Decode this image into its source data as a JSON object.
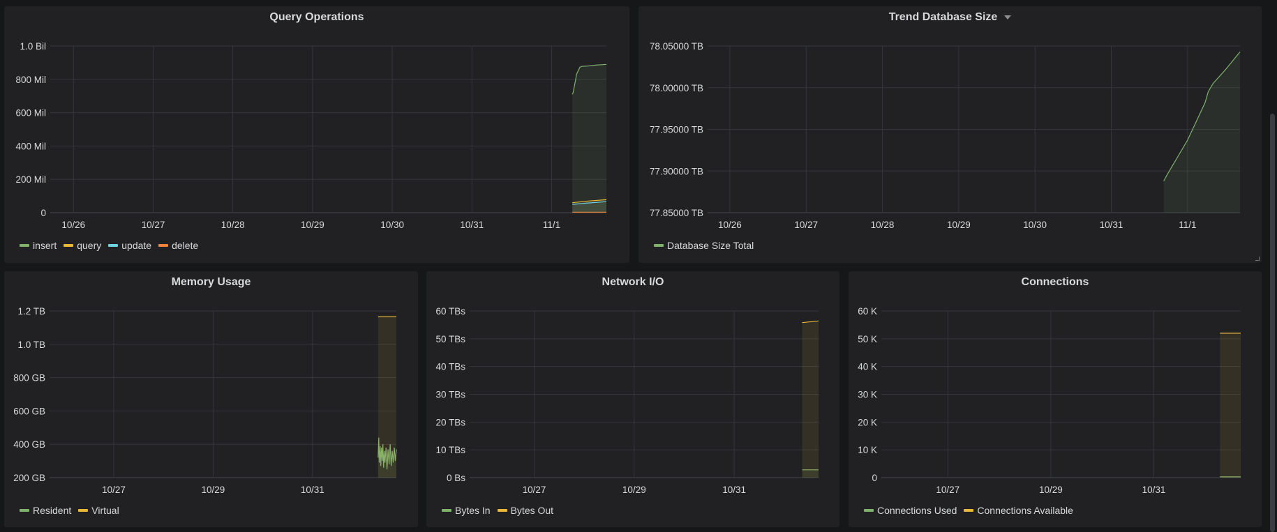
{
  "colors": {
    "background": "#161719",
    "panel": "#212124",
    "grid": "#35363a",
    "text": "#d8d9da",
    "green": "#7eb26d",
    "yellow": "#eab839",
    "cyan": "#6ed0e0",
    "orange": "#ef843c"
  },
  "panels": [
    {
      "title": "Query Operations",
      "has_menu_caret": false,
      "chart_data": {
        "type": "line",
        "xlim": [
          "10/25 17:00",
          "11/01 16:30"
        ],
        "x_ticks": [
          "10/26",
          "10/27",
          "10/28",
          "10/29",
          "10/30",
          "10/31",
          "11/1"
        ],
        "ylim": [
          0,
          1000000000
        ],
        "y_ticks": [
          {
            "value": 0,
            "label": "0"
          },
          {
            "value": 200000000,
            "label": "200 Mil"
          },
          {
            "value": 400000000,
            "label": "400 Mil"
          },
          {
            "value": 600000000,
            "label": "600 Mil"
          },
          {
            "value": 800000000,
            "label": "800 Mil"
          },
          {
            "value": 1000000000,
            "label": "1.0 Bil"
          }
        ],
        "grid": true,
        "legend": "bottom-left",
        "series": [
          {
            "name": "insert",
            "color": "#7eb26d",
            "points": [
              [
                "11/01 06:15",
                710000000
              ],
              [
                "11/01 06:30",
                722000000
              ],
              [
                "11/01 07:15",
                800000000
              ],
              [
                "11/01 07:30",
                830000000
              ],
              [
                "11/01 08:30",
                872000000
              ],
              [
                "11/01 09:00",
                878000000
              ],
              [
                "11/01 11:00",
                880000000
              ],
              [
                "11/01 13:00",
                885000000
              ],
              [
                "11/01 16:30",
                890000000
              ]
            ]
          },
          {
            "name": "query",
            "color": "#eab839",
            "points": [
              [
                "11/01 06:15",
                60000000
              ],
              [
                "11/01 11:00",
                70000000
              ],
              [
                "11/01 16:30",
                78000000
              ]
            ]
          },
          {
            "name": "update",
            "color": "#6ed0e0",
            "points": [
              [
                "11/01 06:15",
                50000000
              ],
              [
                "11/01 11:00",
                58000000
              ],
              [
                "11/01 16:30",
                66000000
              ]
            ]
          },
          {
            "name": "delete",
            "color": "#ef843c",
            "points": [
              [
                "11/01 06:15",
                3000000
              ],
              [
                "11/01 16:30",
                3000000
              ]
            ]
          }
        ]
      }
    },
    {
      "title": "Trend Database Size",
      "has_menu_caret": true,
      "chart_data": {
        "type": "line",
        "xlim": [
          "10/25 17:00",
          "11/01 16:30"
        ],
        "x_ticks": [
          "10/26",
          "10/27",
          "10/28",
          "10/29",
          "10/30",
          "10/31",
          "11/1"
        ],
        "ylim": [
          77.85,
          78.05
        ],
        "y_ticks": [
          {
            "value": 77.85,
            "label": "77.85000 TB"
          },
          {
            "value": 77.9,
            "label": "77.90000 TB"
          },
          {
            "value": 77.95,
            "label": "77.95000 TB"
          },
          {
            "value": 78.0,
            "label": "78.00000 TB"
          },
          {
            "value": 78.05,
            "label": "78.05000 TB"
          }
        ],
        "grid": true,
        "legend": "bottom-left",
        "series": [
          {
            "name": "Database Size Total",
            "color": "#7eb26d",
            "points": [
              [
                "10/31 16:30",
                77.888
              ],
              [
                "10/31 17:30",
                77.895
              ],
              [
                "11/01 00:00",
                77.937
              ],
              [
                "11/01 05:30",
                77.982
              ],
              [
                "11/01 06:30",
                77.995
              ],
              [
                "11/01 08:00",
                78.005
              ],
              [
                "11/01 12:00",
                78.022
              ],
              [
                "11/01 16:30",
                78.043
              ]
            ]
          }
        ]
      }
    },
    {
      "title": "Memory Usage",
      "has_menu_caret": false,
      "chart_data": {
        "type": "line",
        "xlim": [
          "10/25 17:00",
          "11/01 16:30"
        ],
        "x_ticks": [
          "10/27",
          "10/29",
          "10/31"
        ],
        "ylim": [
          200,
          1200
        ],
        "y_ticks": [
          {
            "value": 200,
            "label": "200 GB"
          },
          {
            "value": 400,
            "label": "400 GB"
          },
          {
            "value": 600,
            "label": "600 GB"
          },
          {
            "value": 800,
            "label": "800 GB"
          },
          {
            "value": 1000,
            "label": "1.0 TB"
          },
          {
            "value": 1200,
            "label": "1.2 TB"
          }
        ],
        "grid": true,
        "legend": "bottom-left",
        "series": [
          {
            "name": "Resident",
            "color": "#7eb26d",
            "points": [
              [
                "11/01 07:40",
                320
              ],
              [
                "11/01 08:00",
                440
              ],
              [
                "11/01 08:15",
                290
              ],
              [
                "11/01 08:40",
                390
              ],
              [
                "11/01 09:00",
                270
              ],
              [
                "11/01 09:20",
                380
              ],
              [
                "11/01 09:40",
                300
              ],
              [
                "11/01 10:00",
                400
              ],
              [
                "11/01 10:20",
                260
              ],
              [
                "11/01 10:40",
                360
              ],
              [
                "11/01 11:00",
                290
              ],
              [
                "11/01 11:30",
                380
              ],
              [
                "11/01 12:00",
                250
              ],
              [
                "11/01 12:30",
                370
              ],
              [
                "11/01 13:00",
                280
              ],
              [
                "11/01 13:30",
                400
              ],
              [
                "11/01 14:00",
                270
              ],
              [
                "11/01 14:30",
                360
              ],
              [
                "11/01 15:00",
                290
              ],
              [
                "11/01 15:30",
                380
              ],
              [
                "11/01 16:00",
                300
              ],
              [
                "11/01 16:30",
                370
              ]
            ]
          },
          {
            "name": "Virtual",
            "color": "#eab839",
            "points": [
              [
                "11/01 07:40",
                1165
              ],
              [
                "11/01 16:30",
                1165
              ]
            ]
          }
        ]
      }
    },
    {
      "title": "Network I/O",
      "has_menu_caret": false,
      "chart_data": {
        "type": "line",
        "xlim": [
          "10/25 17:00",
          "11/01 16:30"
        ],
        "x_ticks": [
          "10/27",
          "10/29",
          "10/31"
        ],
        "ylim": [
          0,
          60
        ],
        "y_ticks": [
          {
            "value": 0,
            "label": "0 Bs"
          },
          {
            "value": 10,
            "label": "10 TBs"
          },
          {
            "value": 20,
            "label": "20 TBs"
          },
          {
            "value": 30,
            "label": "30 TBs"
          },
          {
            "value": 40,
            "label": "40 TBs"
          },
          {
            "value": 50,
            "label": "50 TBs"
          },
          {
            "value": 60,
            "label": "60 TBs"
          }
        ],
        "grid": true,
        "legend": "bottom-left",
        "series": [
          {
            "name": "Bytes In",
            "color": "#7eb26d",
            "points": [
              [
                "11/01 08:40",
                2.8
              ],
              [
                "11/01 16:30",
                2.8
              ]
            ]
          },
          {
            "name": "Bytes Out",
            "color": "#eab839",
            "points": [
              [
                "11/01 08:40",
                55.8
              ],
              [
                "11/01 16:30",
                56.4
              ]
            ]
          }
        ]
      }
    },
    {
      "title": "Connections",
      "has_menu_caret": false,
      "chart_data": {
        "type": "line",
        "xlim": [
          "10/25 17:00",
          "11/01 16:30"
        ],
        "x_ticks": [
          "10/27",
          "10/29",
          "10/31"
        ],
        "ylim": [
          0,
          60000
        ],
        "y_ticks": [
          {
            "value": 0,
            "label": "0"
          },
          {
            "value": 10000,
            "label": "10 K"
          },
          {
            "value": 20000,
            "label": "20 K"
          },
          {
            "value": 30000,
            "label": "30 K"
          },
          {
            "value": 40000,
            "label": "40 K"
          },
          {
            "value": 50000,
            "label": "50 K"
          },
          {
            "value": 60000,
            "label": "60 K"
          }
        ],
        "grid": true,
        "legend": "bottom-left",
        "series": [
          {
            "name": "Connections Used",
            "color": "#7eb26d",
            "points": [
              [
                "11/01 06:50",
                300
              ],
              [
                "11/01 16:30",
                300
              ]
            ]
          },
          {
            "name": "Connections Available",
            "color": "#eab839",
            "points": [
              [
                "11/01 06:50",
                52000
              ],
              [
                "11/01 16:30",
                52000
              ]
            ]
          }
        ]
      }
    }
  ]
}
